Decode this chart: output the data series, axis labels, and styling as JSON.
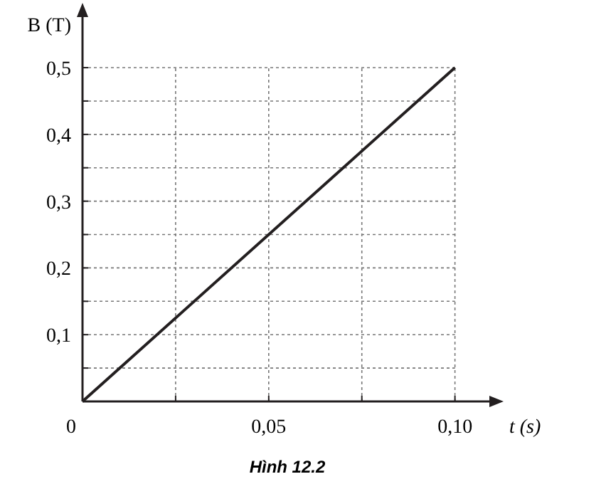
{
  "chart_data": {
    "type": "line",
    "xlabel": "t (s)",
    "ylabel": "B (T)",
    "x": [
      0,
      0.1
    ],
    "series": [
      {
        "color": "#231f20",
        "values": [
          0,
          0.5
        ]
      }
    ],
    "xlim": [
      0,
      0.11
    ],
    "ylim": [
      0,
      0.58
    ],
    "xticks": [
      {
        "value": 0,
        "label": "0"
      },
      {
        "value": 0.025,
        "label": null
      },
      {
        "value": 0.05,
        "label": "0,05"
      },
      {
        "value": 0.075,
        "label": null
      },
      {
        "value": 0.1,
        "label": "0,10"
      }
    ],
    "yticks": [
      {
        "value": 0.05,
        "label": null
      },
      {
        "value": 0.1,
        "label": "0,1"
      },
      {
        "value": 0.15,
        "label": null
      },
      {
        "value": 0.2,
        "label": "0,2"
      },
      {
        "value": 0.25,
        "label": null
      },
      {
        "value": 0.3,
        "label": "0,3"
      },
      {
        "value": 0.35,
        "label": null
      },
      {
        "value": 0.4,
        "label": "0,4"
      },
      {
        "value": 0.45,
        "label": null
      },
      {
        "value": 0.5,
        "label": "0,5"
      }
    ],
    "grid": true,
    "line_style": "solid",
    "marker": "none",
    "annotations": [
      "Hình 12.2"
    ]
  }
}
